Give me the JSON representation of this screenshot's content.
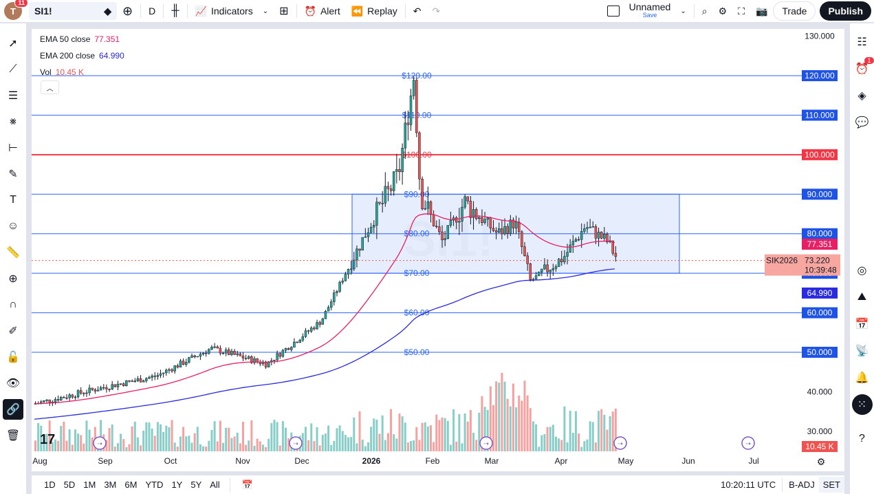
{
  "topbar": {
    "avatar_letter": "T",
    "notifications": "11",
    "symbol": "SI1!",
    "interval": "D",
    "indicators": "Indicators",
    "alert": "Alert",
    "replay": "Replay",
    "layout_name": "Unnamed",
    "save": "Save",
    "trade": "Trade",
    "publish": "Publish"
  },
  "legend": {
    "ema50_label": "EMA 50 close",
    "ema50_value": "77.351",
    "ema200_label": "EMA 200 close",
    "ema200_value": "64.990",
    "vol_label": "Vol",
    "vol_value": "10.45 K",
    "ema50_color": "#e91e63",
    "ema200_color": "#2a2ae0"
  },
  "watermark": "SI1!",
  "price_scale": {
    "ticks": [
      "130.000",
      "40.000",
      "30.000"
    ],
    "line_labels": [
      "120.000",
      "110.000",
      "100.000",
      "90.000",
      "80.000",
      "70.000",
      "60.000",
      "50.000"
    ],
    "ema50_tag": "77.351",
    "ema200_tag": "64.990",
    "last_price": "73.220",
    "countdown": "10:39:48",
    "contract": "SIK2026",
    "volume_tag": "10.45 K"
  },
  "chart_lines": {
    "labels": [
      "$120.00",
      "$110.00",
      "$100.00",
      "$90.00",
      "$80.00",
      "$70.00",
      "$60.00",
      "$50.00"
    ]
  },
  "time_axis": [
    "Aug",
    "Sep",
    "Oct",
    "Nov",
    "Dec",
    "2026",
    "Feb",
    "Mar",
    "Apr",
    "May",
    "Jun",
    "Jul"
  ],
  "bottombar": {
    "ranges": [
      "1D",
      "5D",
      "1M",
      "3M",
      "6M",
      "YTD",
      "1Y",
      "5Y",
      "All"
    ],
    "clock": "10:20:11 UTC",
    "adj": "B-ADJ",
    "session": "SET"
  },
  "right_badge": "1",
  "colors": {
    "up": "#26a69a",
    "down": "#ef5350",
    "line_blue": "#2962ff",
    "line_red": "#f23645",
    "zone": "#dbe6fb"
  },
  "chart_data": {
    "type": "candlestick",
    "symbol": "SI1!",
    "interval": "D",
    "y_axis": {
      "min": 30,
      "max": 130
    },
    "horizontal_lines": [
      120,
      110,
      100,
      90,
      80,
      70,
      60,
      50
    ],
    "rectangle": {
      "from": "Jan",
      "to": "May",
      "low": 70,
      "high": 90
    },
    "series": [
      {
        "name": "EMA 50 close",
        "last": 77.351
      },
      {
        "name": "EMA 200 close",
        "last": 64.99
      },
      {
        "name": "Vol",
        "last": "10.45 K"
      }
    ],
    "last_close": 73.22,
    "monthly_closes": {
      "Aug": 38,
      "Sep": 42,
      "Oct": 48,
      "Nov": 50,
      "Dec": 68,
      "Jan": 85,
      "Feb": 80,
      "Mar": 72,
      "Apr": 76,
      "May": 73.22
    }
  }
}
